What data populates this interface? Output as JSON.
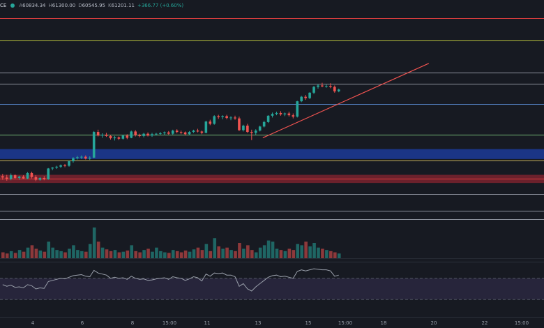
{
  "header": {
    "symbol_fragment": "CE",
    "open_label": "A",
    "open": "60834.34",
    "high_label": "H",
    "high": "61300.00",
    "low_label": "D",
    "low": "60545.95",
    "close_label": "K",
    "close": "61201.11",
    "change": "+366.77 (+0.60%)"
  },
  "chart_data": {
    "type": "candlestick",
    "x_tick_labels": [
      "4",
      "6",
      "8",
      "15:00",
      "11",
      "13",
      "15",
      "15:00",
      "18",
      "20",
      "22",
      "15:00"
    ],
    "colors": {
      "up": "#26a69a",
      "down": "#ef5350",
      "background": "#171a22",
      "trendline": "#ef5350",
      "rsi_line": "#9aa0ab",
      "rsi_band": "#2a2840"
    },
    "horizontal_levels": [
      {
        "price": 64600,
        "color": "#e84040"
      },
      {
        "price": 64100,
        "color": "#c8d040"
      },
      {
        "price": 63400,
        "color": "#9aa0ab"
      },
      {
        "price": 63150,
        "color": "#9aa0ab"
      },
      {
        "price": 62700,
        "color": "#5b8ed6"
      },
      {
        "price": 62020,
        "color": "#7ec87e"
      },
      {
        "price": 61450,
        "color": "#d8c060"
      },
      {
        "price": 61050,
        "color": "#e84040"
      },
      {
        "price": 60700,
        "color": "#9aa0ab"
      },
      {
        "price": 60330,
        "color": "#9aa0ab"
      },
      {
        "price": 60150,
        "color": "#9aa0ab"
      }
    ],
    "zones": [
      {
        "from": 61480,
        "to": 61700,
        "color": "#1e3fa8"
      },
      {
        "from": 60950,
        "to": 61130,
        "color": "#8a2430"
      }
    ],
    "trendline": {
      "from": {
        "i": 63,
        "price": 61950
      },
      "to": {
        "i": 103,
        "price": 63600
      }
    },
    "candles": [
      [
        61100,
        61150,
        61020,
        61070
      ],
      [
        61070,
        61130,
        61000,
        61040
      ],
      [
        61040,
        61160,
        61010,
        61120
      ],
      [
        61120,
        61140,
        61040,
        61060
      ],
      [
        61060,
        61110,
        61020,
        61090
      ],
      [
        61090,
        61120,
        61040,
        61050
      ],
      [
        61050,
        61190,
        61030,
        61170
      ],
      [
        61170,
        61200,
        61050,
        61080
      ],
      [
        61080,
        61120,
        60990,
        61020
      ],
      [
        61020,
        61080,
        61000,
        61060
      ],
      [
        61060,
        61100,
        61010,
        61030
      ],
      [
        61030,
        61280,
        61020,
        61270
      ],
      [
        61270,
        61300,
        61230,
        61290
      ],
      [
        61290,
        61330,
        61260,
        61310
      ],
      [
        61310,
        61360,
        61280,
        61340
      ],
      [
        61340,
        61370,
        61300,
        61330
      ],
      [
        61330,
        61450,
        61310,
        61430
      ],
      [
        61430,
        61520,
        61400,
        61500
      ],
      [
        61500,
        61550,
        61470,
        61520
      ],
      [
        61520,
        61560,
        61480,
        61530
      ],
      [
        61530,
        61560,
        61470,
        61490
      ],
      [
        61490,
        61540,
        61460,
        61510
      ],
      [
        61510,
        62100,
        61500,
        62080
      ],
      [
        62080,
        62130,
        61980,
        62000
      ],
      [
        62000,
        62050,
        61950,
        62020
      ],
      [
        62020,
        62060,
        61970,
        61990
      ],
      [
        61990,
        62010,
        61910,
        61940
      ],
      [
        61940,
        61990,
        61890,
        61960
      ],
      [
        61960,
        61980,
        61900,
        61930
      ],
      [
        61930,
        62020,
        61910,
        62000
      ],
      [
        62000,
        62030,
        61920,
        61950
      ],
      [
        61950,
        62110,
        61940,
        62090
      ],
      [
        62090,
        62120,
        61980,
        62010
      ],
      [
        62010,
        62040,
        61960,
        61990
      ],
      [
        61990,
        62060,
        61960,
        62040
      ],
      [
        62040,
        62070,
        61980,
        62000
      ],
      [
        62000,
        62060,
        61970,
        62030
      ],
      [
        62030,
        62060,
        62000,
        62040
      ],
      [
        62040,
        62080,
        62010,
        62050
      ],
      [
        62050,
        62090,
        62010,
        62070
      ],
      [
        62070,
        62100,
        62020,
        62040
      ],
      [
        62040,
        62130,
        62020,
        62110
      ],
      [
        62110,
        62140,
        62050,
        62080
      ],
      [
        62080,
        62110,
        62030,
        62070
      ],
      [
        62070,
        62090,
        62000,
        62030
      ],
      [
        62030,
        62100,
        62010,
        62080
      ],
      [
        62080,
        62130,
        62060,
        62110
      ],
      [
        62110,
        62150,
        62070,
        62090
      ],
      [
        62090,
        62110,
        62030,
        62060
      ],
      [
        62060,
        62330,
        62050,
        62310
      ],
      [
        62310,
        62350,
        62230,
        62260
      ],
      [
        62260,
        62450,
        62240,
        62430
      ],
      [
        62430,
        62460,
        62370,
        62410
      ],
      [
        62410,
        62450,
        62360,
        62430
      ],
      [
        62430,
        62460,
        62360,
        62390
      ],
      [
        62390,
        62430,
        62340,
        62400
      ],
      [
        62400,
        62440,
        62350,
        62380
      ],
      [
        62380,
        62420,
        62100,
        62120
      ],
      [
        62120,
        62240,
        62090,
        62220
      ],
      [
        62220,
        62260,
        62060,
        62080
      ],
      [
        62080,
        62130,
        61900,
        62060
      ],
      [
        62060,
        62140,
        62020,
        62110
      ],
      [
        62110,
        62220,
        62090,
        62200
      ],
      [
        62200,
        62330,
        62180,
        62300
      ],
      [
        62300,
        62450,
        62280,
        62440
      ],
      [
        62440,
        62510,
        62400,
        62480
      ],
      [
        62480,
        62530,
        62450,
        62500
      ],
      [
        62500,
        62540,
        62440,
        62470
      ],
      [
        62470,
        62510,
        62430,
        62490
      ],
      [
        62490,
        62530,
        62420,
        62450
      ],
      [
        62450,
        62490,
        62380,
        62420
      ],
      [
        62420,
        62770,
        62400,
        62760
      ],
      [
        62760,
        62880,
        62740,
        62860
      ],
      [
        62860,
        62900,
        62790,
        62830
      ],
      [
        62830,
        62960,
        62810,
        62950
      ],
      [
        62950,
        63100,
        62920,
        63080
      ],
      [
        63080,
        63140,
        63040,
        63110
      ],
      [
        63110,
        63170,
        63070,
        63090
      ],
      [
        63090,
        63130,
        63060,
        63100
      ],
      [
        63100,
        63160,
        63050,
        63080
      ],
      [
        63080,
        63110,
        62950,
        62980
      ],
      [
        62980,
        63040,
        62960,
        63020
      ]
    ],
    "volumes": [
      10,
      8,
      12,
      9,
      14,
      11,
      18,
      22,
      16,
      13,
      11,
      28,
      18,
      14,
      12,
      10,
      16,
      22,
      14,
      12,
      11,
      24,
      52,
      28,
      18,
      15,
      12,
      14,
      10,
      11,
      13,
      22,
      12,
      10,
      14,
      16,
      11,
      18,
      12,
      10,
      9,
      14,
      12,
      10,
      13,
      11,
      15,
      18,
      14,
      24,
      12,
      34,
      20,
      16,
      18,
      14,
      12,
      26,
      16,
      22,
      14,
      10,
      18,
      22,
      30,
      28,
      16,
      14,
      12,
      16,
      14,
      24,
      22,
      28,
      20,
      26,
      18,
      16,
      14,
      12,
      10,
      8
    ],
    "rsi": [
      58,
      55,
      57,
      53,
      54,
      52,
      58,
      56,
      50,
      52,
      51,
      64,
      66,
      68,
      70,
      69,
      72,
      75,
      76,
      77,
      74,
      73,
      85,
      80,
      78,
      76,
      70,
      72,
      70,
      71,
      68,
      74,
      70,
      68,
      69,
      66,
      67,
      69,
      70,
      71,
      68,
      73,
      71,
      70,
      66,
      69,
      73,
      71,
      65,
      78,
      74,
      80,
      79,
      80,
      76,
      76,
      73,
      55,
      60,
      50,
      46,
      54,
      60,
      66,
      72,
      75,
      76,
      73,
      74,
      72,
      70,
      83,
      86,
      84,
      86,
      88,
      87,
      86,
      86,
      84,
      74,
      76
    ]
  }
}
